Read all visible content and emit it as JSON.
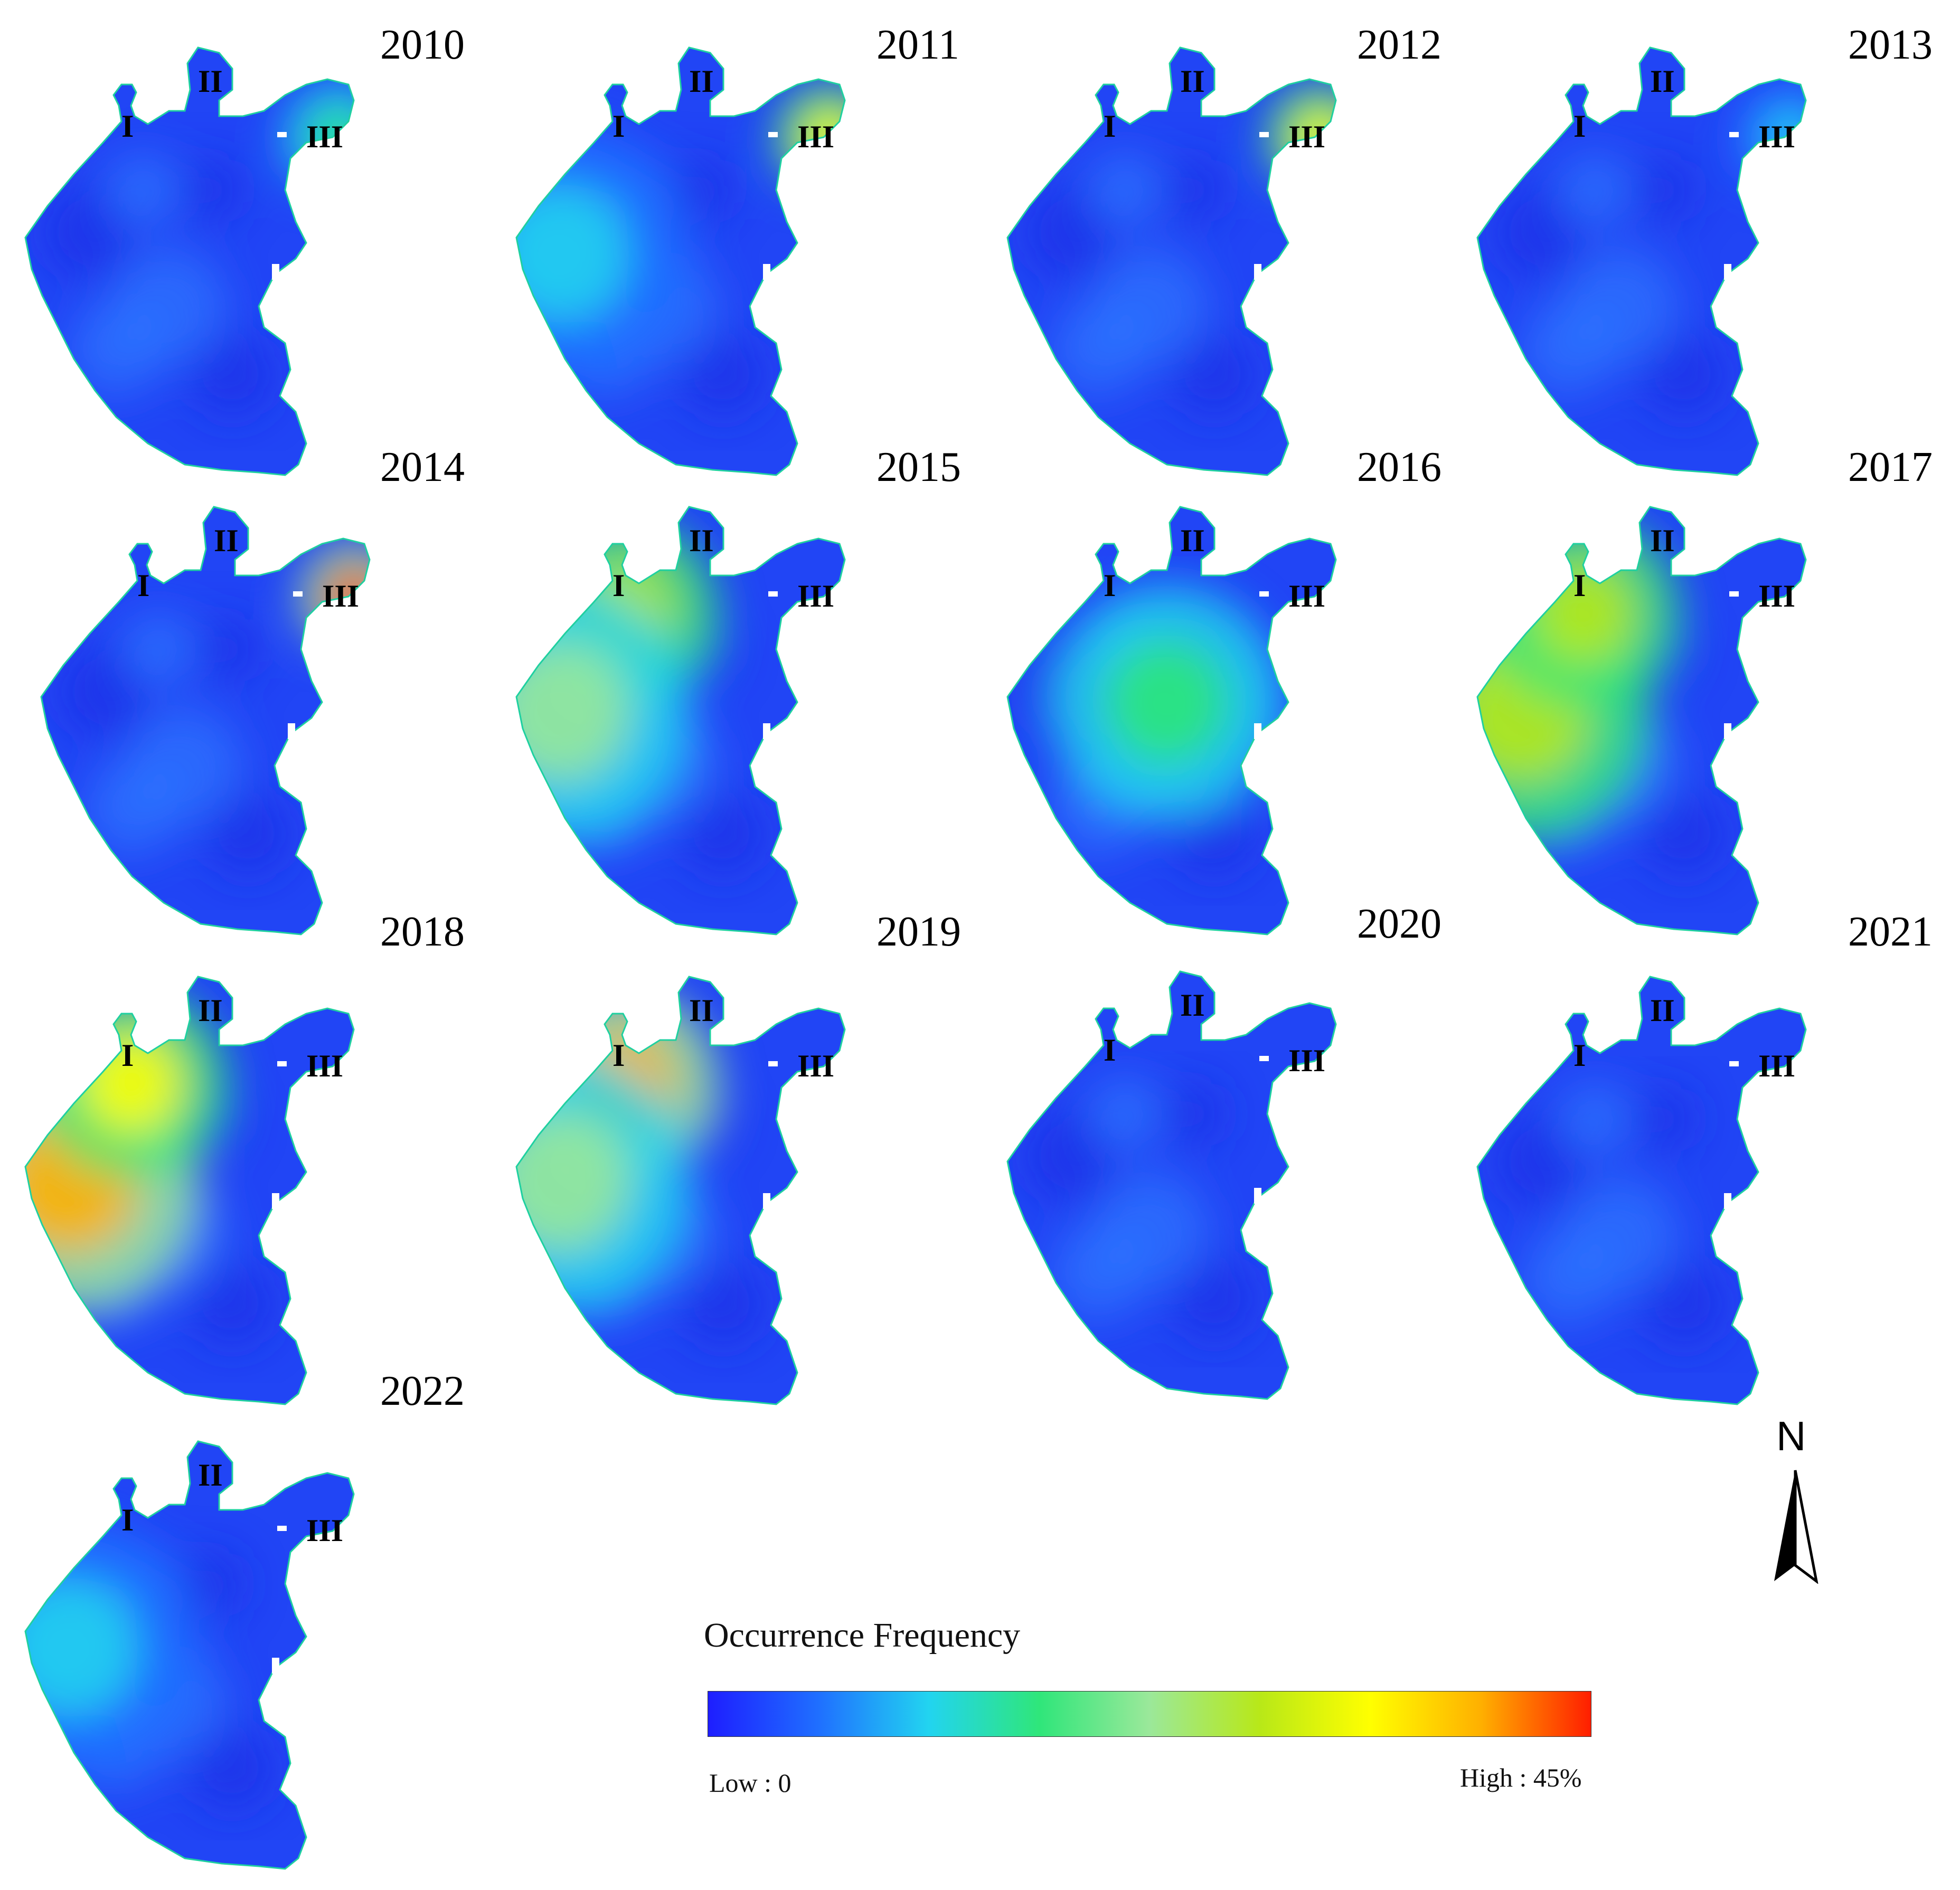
{
  "panels": [
    {
      "year": "2010",
      "hotspots": [
        {
          "region": "III",
          "level": 0.35
        }
      ]
    },
    {
      "year": "2011",
      "hotspots": [
        {
          "region": "III",
          "level": 0.7
        },
        {
          "region": "west",
          "level": 0.3
        }
      ]
    },
    {
      "year": "2012",
      "hotspots": [
        {
          "region": "III",
          "level": 0.75
        }
      ]
    },
    {
      "year": "2013",
      "hotspots": [
        {
          "region": "III",
          "level": 0.3
        }
      ]
    },
    {
      "year": "2014",
      "hotspots": [
        {
          "region": "III",
          "level": 0.95
        }
      ]
    },
    {
      "year": "2015",
      "hotspots": [
        {
          "region": "I",
          "level": 0.65
        },
        {
          "region": "west",
          "level": 0.45
        }
      ]
    },
    {
      "year": "2016",
      "hotspots": [
        {
          "region": "center",
          "level": 0.4
        }
      ]
    },
    {
      "year": "2017",
      "hotspots": [
        {
          "region": "west",
          "level": 0.6
        },
        {
          "region": "I",
          "level": 0.6
        }
      ]
    },
    {
      "year": "2018",
      "hotspots": [
        {
          "region": "west",
          "level": 0.9
        },
        {
          "region": "I",
          "level": 0.7
        }
      ]
    },
    {
      "year": "2019",
      "hotspots": [
        {
          "region": "I",
          "level": 0.85
        },
        {
          "region": "west",
          "level": 0.5
        }
      ]
    },
    {
      "year": "2020",
      "hotspots": [
        {
          "region": "none",
          "level": 0.15
        }
      ]
    },
    {
      "year": "2021",
      "hotspots": [
        {
          "region": "none",
          "level": 0.15
        }
      ]
    },
    {
      "year": "2022",
      "hotspots": [
        {
          "region": "west",
          "level": 0.3
        }
      ]
    }
  ],
  "region_labels": {
    "I": "I",
    "II": "II",
    "III": "III"
  },
  "legend": {
    "title": "Occurrence Frequency",
    "low_label": "Low : 0",
    "high_label": "High : 45%",
    "colors": [
      "#1e1eff",
      "#1f6fff",
      "#22d4f0",
      "#2fe67a",
      "#9be89a",
      "#b8e818",
      "#ffff00",
      "#ffb000",
      "#ff1e00"
    ]
  },
  "north_arrow": {
    "letter": "N"
  }
}
